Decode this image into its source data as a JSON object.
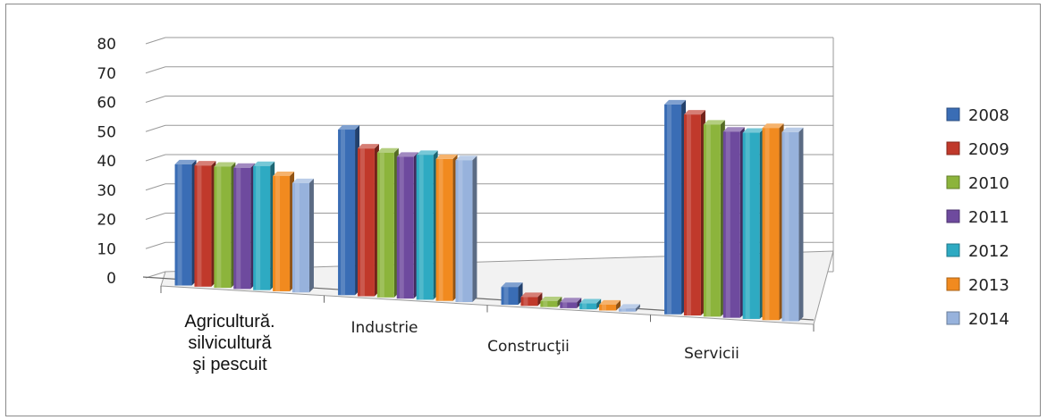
{
  "chart_data": {
    "type": "bar",
    "categories": [
      "Agricultură. silvicultură şi pescuit",
      "Industrie",
      "Construcţii",
      "Servicii"
    ],
    "category_lines": [
      [
        "Agricultură.",
        "silvicultură",
        "şi pescuit"
      ],
      [
        "Industrie"
      ],
      [
        "Construcţii"
      ],
      [
        "Servicii"
      ]
    ],
    "series": [
      {
        "name": "2008",
        "color": "#3a6db5",
        "values": [
          41,
          56,
          6,
          71
        ]
      },
      {
        "name": "2009",
        "color": "#c0392b",
        "values": [
          41,
          50,
          3,
          68
        ]
      },
      {
        "name": "2010",
        "color": "#8cb43c",
        "values": [
          41,
          49,
          2,
          65
        ]
      },
      {
        "name": "2011",
        "color": "#6e4a9e",
        "values": [
          41,
          48,
          2,
          63
        ]
      },
      {
        "name": "2012",
        "color": "#2eaac2",
        "values": [
          42,
          49,
          2,
          63
        ]
      },
      {
        "name": "2013",
        "color": "#f18a1f",
        "values": [
          39,
          48,
          2,
          65
        ]
      },
      {
        "name": "2014",
        "color": "#97b2dc",
        "values": [
          37,
          48,
          1,
          64
        ]
      }
    ],
    "yticks": [
      0,
      10,
      20,
      30,
      40,
      50,
      60,
      70,
      80
    ],
    "ylim": [
      0,
      80
    ],
    "grid": true,
    "legend": "right",
    "style": "3d-clustered-column"
  }
}
